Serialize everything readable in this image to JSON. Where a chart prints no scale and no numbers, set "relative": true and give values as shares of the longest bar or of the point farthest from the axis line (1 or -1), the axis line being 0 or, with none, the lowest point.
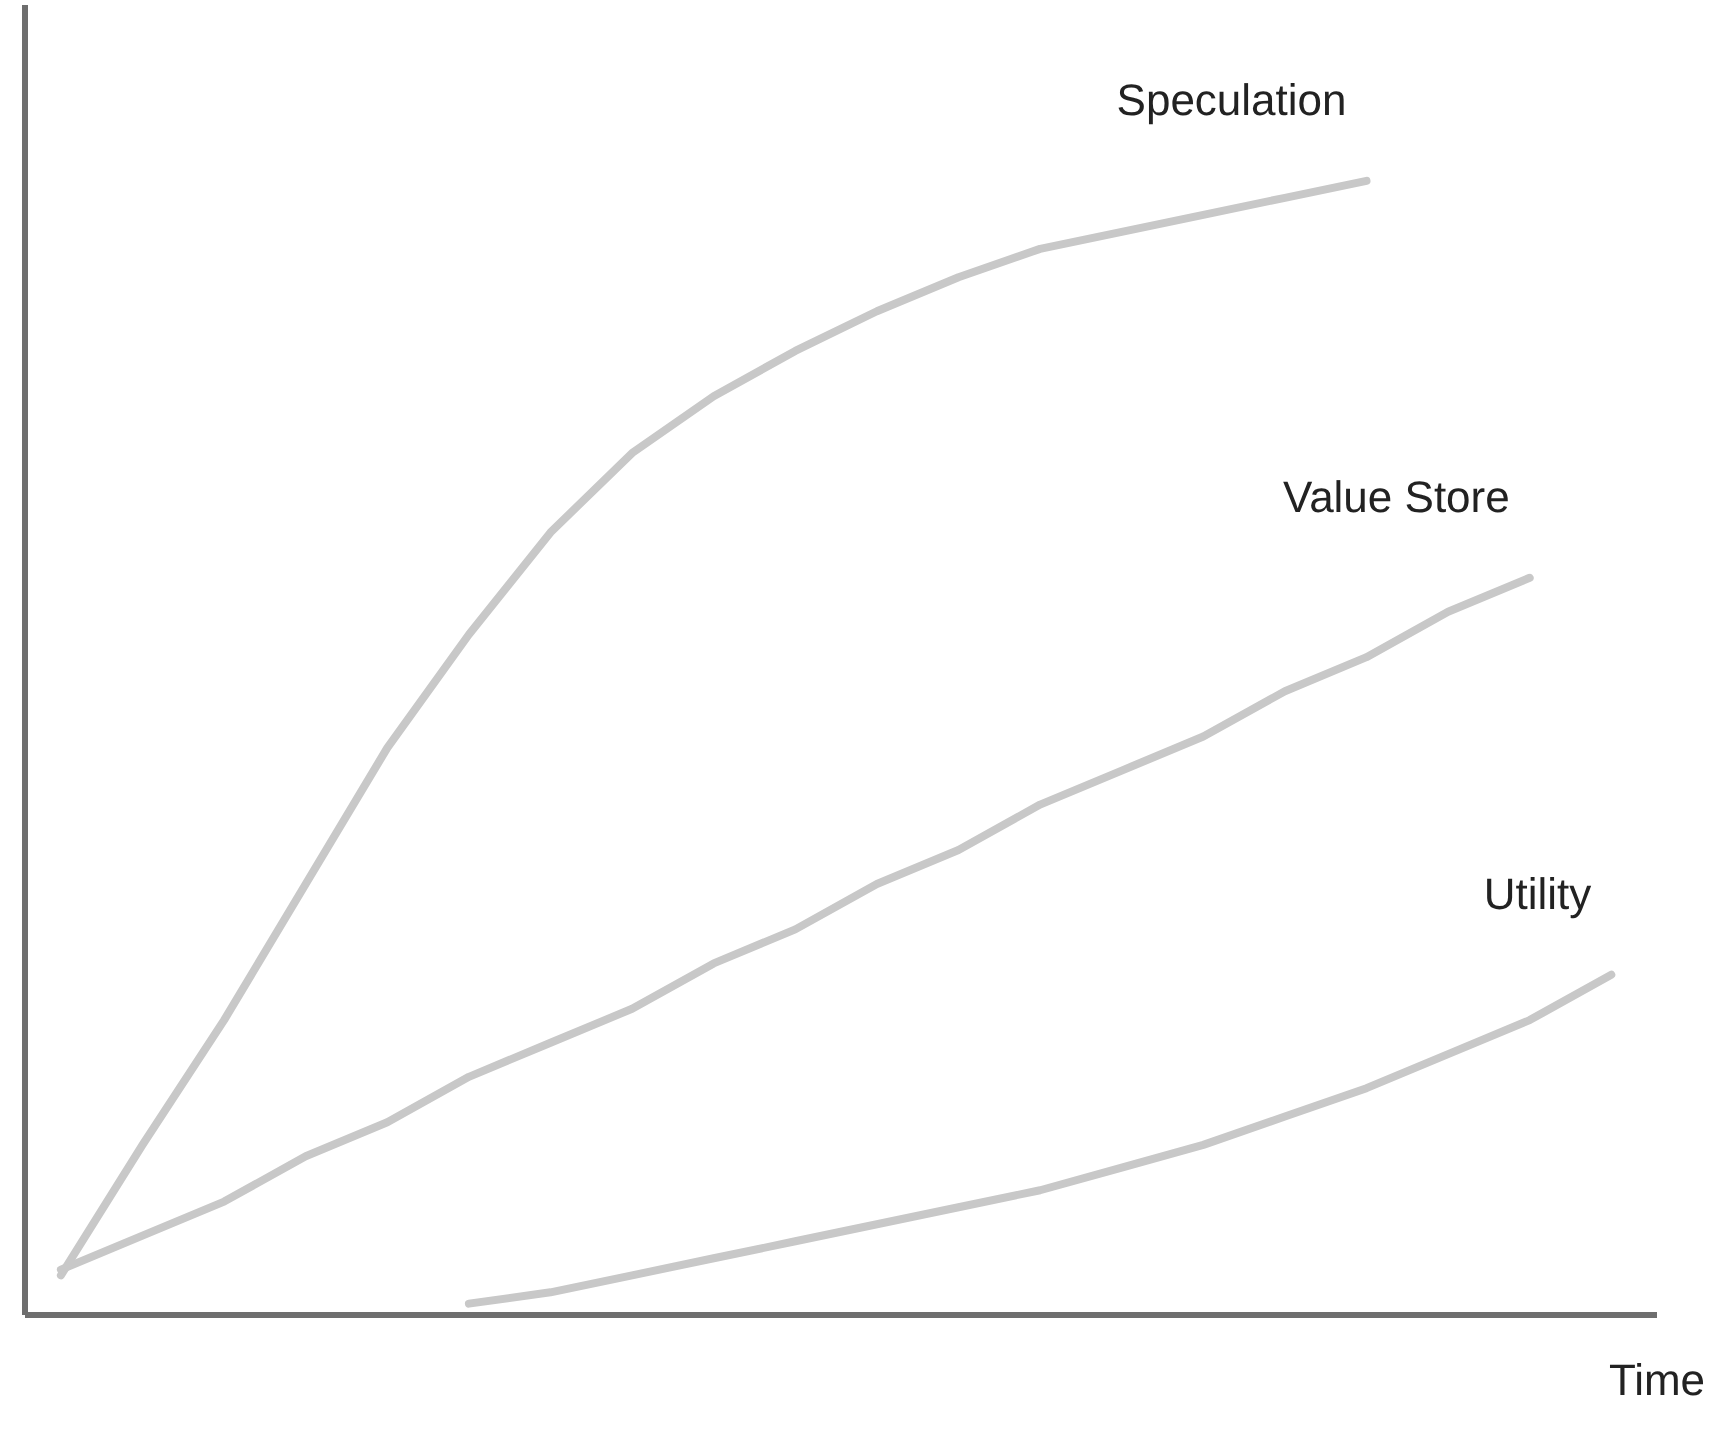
{
  "chart_data": {
    "type": "line",
    "relative": true,
    "xlabel": "Time",
    "tick_labels": false,
    "marker": "none",
    "line_style": "solid",
    "categories": [
      null,
      null,
      null,
      null,
      null,
      null,
      null,
      null,
      null,
      null,
      null,
      null,
      null,
      null,
      null,
      null,
      null,
      null,
      null,
      null
    ],
    "series": [
      {
        "name": "Speculation",
        "color": "#c8c8c8",
        "values": [
          0.035,
          0.15,
          0.26,
          0.38,
          0.5,
          0.6,
          0.69,
          0.76,
          0.81,
          0.85,
          0.885,
          0.915,
          0.94,
          0.955,
          0.97,
          0.985,
          1,
          null,
          null,
          null
        ]
      },
      {
        "name": "Value Store",
        "color": "#c8c8c8",
        "values": [
          0.04,
          0.07,
          0.1,
          0.14,
          0.17,
          0.21,
          0.24,
          0.27,
          0.31,
          0.34,
          0.38,
          0.41,
          0.45,
          0.48,
          0.51,
          0.55,
          0.58,
          0.62,
          0.65,
          null
        ]
      },
      {
        "name": "Utility",
        "color": "#c8c8c8",
        "values": [
          null,
          null,
          null,
          null,
          null,
          0.01,
          0.02,
          0.035,
          0.05,
          0.065,
          0.08,
          0.095,
          0.11,
          0.13,
          0.15,
          0.175,
          0.2,
          0.23,
          0.26,
          0.3
        ]
      }
    ]
  }
}
